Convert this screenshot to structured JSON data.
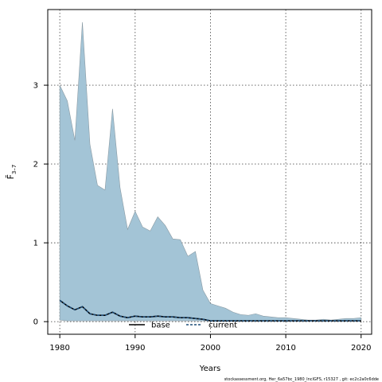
{
  "chart_data": {
    "type": "area",
    "title": "",
    "xlabel": "Years",
    "ylabel": "F̄ 3–7",
    "xlim": [
      1978.4,
      2021.4
    ],
    "ylim": [
      -0.16,
      3.96
    ],
    "x_ticks": [
      1980,
      1990,
      2000,
      2010,
      2020
    ],
    "y_ticks": [
      0,
      1,
      2,
      3
    ],
    "grid": true,
    "legend_position": "bottom",
    "x": [
      1980,
      1981,
      1982,
      1983,
      1984,
      1985,
      1986,
      1987,
      1988,
      1989,
      1990,
      1991,
      1992,
      1993,
      1994,
      1995,
      1996,
      1997,
      1998,
      1999,
      2000,
      2001,
      2002,
      2003,
      2004,
      2005,
      2006,
      2007,
      2008,
      2009,
      2010,
      2011,
      2012,
      2013,
      2014,
      2015,
      2016,
      2017,
      2018,
      2019,
      2020
    ],
    "band": {
      "color": "#a3c4d6",
      "upper": [
        3.0,
        2.8,
        2.3,
        3.8,
        2.25,
        1.73,
        1.67,
        2.7,
        1.7,
        1.17,
        1.4,
        1.2,
        1.15,
        1.33,
        1.22,
        1.05,
        1.04,
        0.83,
        0.89,
        0.4,
        0.23,
        0.2,
        0.17,
        0.12,
        0.09,
        0.08,
        0.1,
        0.07,
        0.06,
        0.05,
        0.05,
        0.04,
        0.03,
        0.02,
        0.02,
        0.03,
        0.02,
        0.03,
        0.04,
        0.04,
        0.05
      ],
      "lower": [
        0.02,
        0.01,
        0.01,
        0.01,
        0.01,
        0.01,
        0.01,
        0.01,
        0.01,
        0.01,
        0.01,
        0.01,
        0.01,
        0.01,
        0.01,
        0.01,
        0.01,
        0.01,
        0.01,
        0.01,
        0.01,
        0.01,
        0.01,
        0.01,
        0.01,
        0.01,
        0.01,
        0.01,
        0.01,
        0.01,
        0.01,
        0.01,
        0.01,
        0.01,
        0.01,
        0.01,
        0.01,
        0.01,
        0.01,
        0.01,
        0.01
      ]
    },
    "series": [
      {
        "name": "base",
        "style": "solid",
        "color": "#000000",
        "values": [
          0.27,
          0.2,
          0.15,
          0.19,
          0.1,
          0.08,
          0.08,
          0.12,
          0.07,
          0.05,
          0.07,
          0.06,
          0.06,
          0.07,
          0.06,
          0.06,
          0.05,
          0.05,
          0.04,
          0.03,
          0.01,
          0.01,
          0.01,
          0.01,
          0.01,
          0.01,
          0.01,
          0.01,
          0.01,
          0.01,
          0.01,
          0.01,
          0.01,
          0.01,
          0.01,
          0.01,
          0.01,
          0.01,
          0.01,
          0.01,
          0.01
        ]
      },
      {
        "name": "current",
        "style": "dashed",
        "color": "#1f4e79",
        "values": [
          0.27,
          0.2,
          0.15,
          0.19,
          0.1,
          0.08,
          0.08,
          0.12,
          0.07,
          0.05,
          0.07,
          0.06,
          0.06,
          0.07,
          0.06,
          0.06,
          0.05,
          0.05,
          0.04,
          0.03,
          0.01,
          0.01,
          0.01,
          0.01,
          0.01,
          0.01,
          0.01,
          0.01,
          0.01,
          0.01,
          0.01,
          0.01,
          0.01,
          0.01,
          0.01,
          0.01,
          0.01,
          0.01,
          0.01,
          0.01,
          0.01
        ]
      }
    ]
  },
  "footer_text": "stockassessment.org, Her_6a57bc_1980_InclGFS, r15327 , git: ec2c2a0c6dde"
}
